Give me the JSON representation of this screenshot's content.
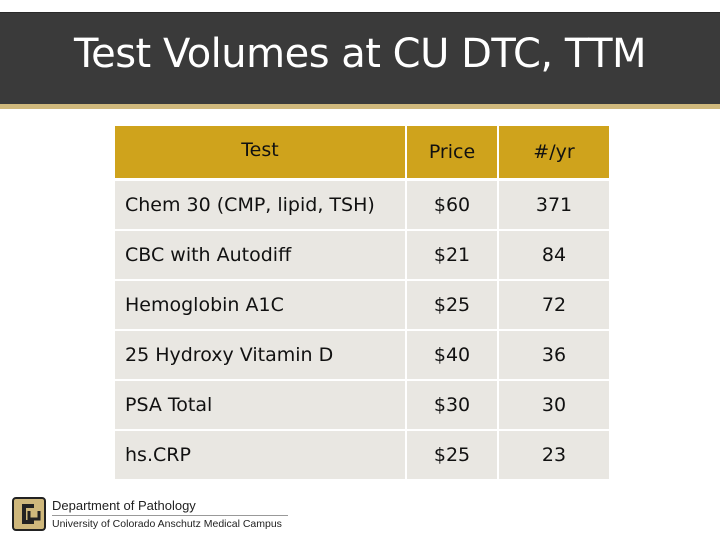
{
  "title": "Test Volumes at CU DTC, TTM",
  "table": {
    "headers": [
      "Test",
      "Price",
      "#/yr"
    ],
    "rows": [
      {
        "test": "Chem 30 (CMP, lipid, TSH)",
        "price": "$60",
        "volume": "371"
      },
      {
        "test": "CBC with Autodiff",
        "price": "$21",
        "volume": "84"
      },
      {
        "test": "Hemoglobin A1C",
        "price": "$25",
        "volume": "72"
      },
      {
        "test": "25 Hydroxy Vitamin D",
        "price": "$40",
        "volume": "36"
      },
      {
        "test": "PSA Total",
        "price": "$30",
        "volume": "30"
      },
      {
        "test": "hs.CRP",
        "price": "$25",
        "volume": "23"
      }
    ]
  },
  "footer": {
    "department": "Department of Pathology",
    "institution": "University of Colorado Anschutz Medical Campus",
    "logo_icon": "cu-logo-icon"
  },
  "colors": {
    "title_bg": "#3a3a3a",
    "header_gold": "#cfa31c",
    "row_bg": "#e9e7e2",
    "accent": "#cfb87c"
  }
}
